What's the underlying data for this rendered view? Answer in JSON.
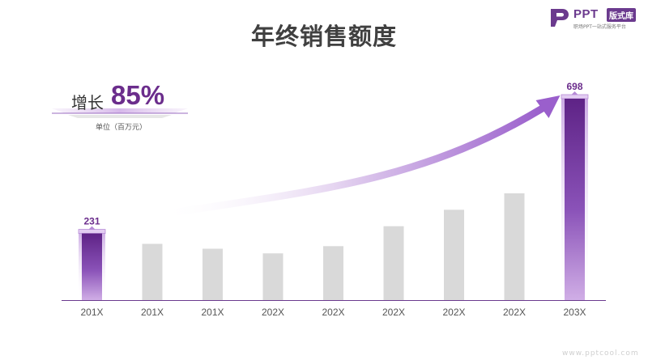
{
  "title": "年终销售额度",
  "growth": {
    "label": "增长",
    "value": "85%",
    "unit": "单位（百万元）"
  },
  "logo": {
    "brand": "PPT",
    "badge": "版式库",
    "tagline": "职场PPT一站式服务平台"
  },
  "watermark": "www.pptcool.com",
  "colors": {
    "accent": "#6b2d8c",
    "bar_gray": "#d9d9d9",
    "axis": "#6b3a8e"
  },
  "chart_data": {
    "type": "bar",
    "categories": [
      "201X",
      "201X",
      "201X",
      "202X",
      "202X",
      "202X",
      "202X",
      "202X",
      "203X"
    ],
    "values": [
      231,
      195,
      178,
      162,
      187,
      256,
      313,
      370,
      698
    ],
    "highlighted": [
      0,
      8
    ],
    "data_labels": [
      "231",
      "",
      "",
      "",
      "",
      "",
      "",
      "",
      "698"
    ],
    "title": "年终销售额度",
    "xlabel": "",
    "ylabel": "",
    "ylim": [
      0,
      698
    ],
    "grid": false
  }
}
